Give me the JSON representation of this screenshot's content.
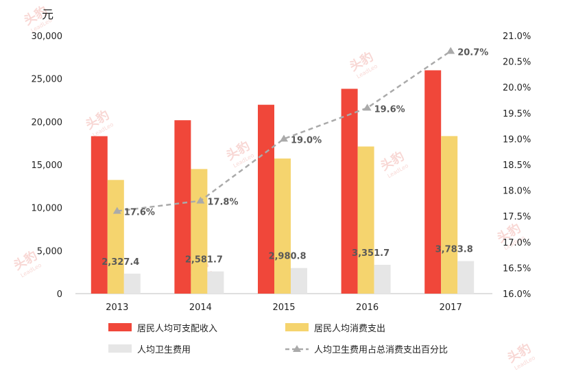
{
  "chart_data": {
    "type": "bar",
    "title": "",
    "categories": [
      "2013",
      "2014",
      "2015",
      "2016",
      "2017"
    ],
    "y_left": {
      "unit": "元",
      "ylim": [
        0,
        30000
      ],
      "ticks": [
        "0",
        "5,000",
        "10,000",
        "15,000",
        "20,000",
        "25,000",
        "30,000"
      ],
      "tick_values": [
        0,
        5000,
        10000,
        15000,
        20000,
        25000,
        30000
      ]
    },
    "y_right": {
      "ylim": [
        16.0,
        21.0
      ],
      "ticks": [
        "16.0%",
        "16.5%",
        "17.0%",
        "17.5%",
        "18.0%",
        "18.5%",
        "19.0%",
        "19.5%",
        "20.0%",
        "20.5%",
        "21.0%"
      ],
      "tick_values": [
        16.0,
        16.5,
        17.0,
        17.5,
        18.0,
        18.5,
        19.0,
        19.5,
        20.0,
        20.5,
        21.0
      ]
    },
    "series": [
      {
        "name": "居民人均可支配收入",
        "type": "bar",
        "axis": "left",
        "color": "#f0473a",
        "values": [
          18311,
          20167,
          21966,
          23821,
          25974
        ]
      },
      {
        "name": "居民人均消费支出",
        "type": "bar",
        "axis": "left",
        "color": "#f5d46e",
        "values": [
          13220,
          14491,
          15712,
          17111,
          18322
        ]
      },
      {
        "name": "人均卫生费用",
        "type": "bar",
        "axis": "left",
        "color": "#e6e6e6",
        "values": [
          2327.4,
          2581.7,
          2980.8,
          3351.7,
          3783.8
        ],
        "labels": [
          "2,327.4",
          "2,581.7",
          "2,980.8",
          "3,351.7",
          "3,783.8"
        ]
      },
      {
        "name": "人均卫生费用占总消费支出百分比",
        "type": "line",
        "axis": "right",
        "color": "#aaaaaa",
        "values": [
          17.6,
          17.8,
          19.0,
          19.6,
          20.7
        ],
        "labels": [
          "17.6%",
          "17.8%",
          "19.0%",
          "19.6%",
          "20.7%"
        ]
      }
    ],
    "legend_position": "bottom",
    "grid": false
  },
  "watermark": {
    "text": "头豹",
    "subtext": "LeadLeo",
    "color": "#f3b7b2"
  }
}
